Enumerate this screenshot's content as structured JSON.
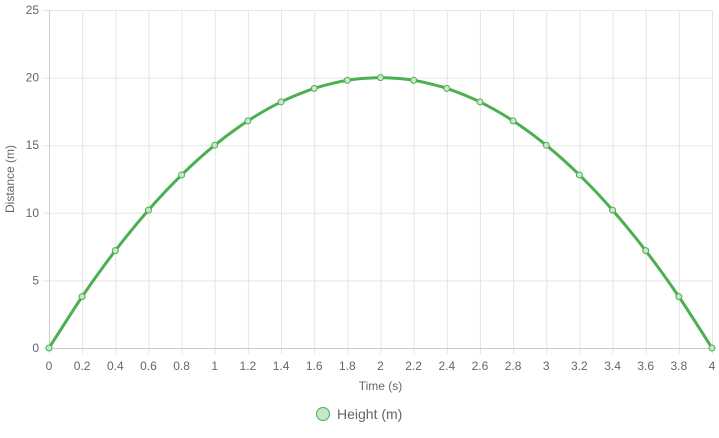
{
  "chart_data": {
    "type": "line",
    "title": "",
    "xlabel": "Time (s)",
    "ylabel": "Distance (m)",
    "x": [
      0,
      0.2,
      0.4,
      0.6,
      0.8,
      1,
      1.2,
      1.4,
      1.6,
      1.8,
      2,
      2.2,
      2.4,
      2.6,
      2.8,
      3,
      3.2,
      3.4,
      3.6,
      3.8,
      4
    ],
    "x_tick_labels": [
      "0",
      "0.2",
      "0.4",
      "0.6",
      "0.8",
      "1",
      "1.2",
      "1.4",
      "1.6",
      "1.8",
      "2",
      "2.2",
      "2.4",
      "2.6",
      "2.8",
      "3",
      "3.2",
      "3.4",
      "3.6",
      "3.8",
      "4"
    ],
    "y_tick_labels": [
      "0",
      "5",
      "10",
      "15",
      "20",
      "25"
    ],
    "xlim": [
      0,
      4
    ],
    "ylim": [
      0,
      25
    ],
    "y_ticks": [
      0,
      5,
      10,
      15,
      20,
      25
    ],
    "grid": true,
    "legend_position": "bottom",
    "series": [
      {
        "name": "Height (m)",
        "color": "#4caf50",
        "point_fill": "#c8e6c9",
        "values": [
          0,
          3.8,
          7.2,
          10.2,
          12.8,
          15.0,
          16.8,
          18.2,
          19.2,
          19.8,
          20.0,
          19.8,
          19.2,
          18.2,
          16.8,
          15.0,
          12.8,
          10.2,
          7.2,
          3.8,
          0
        ]
      }
    ]
  }
}
